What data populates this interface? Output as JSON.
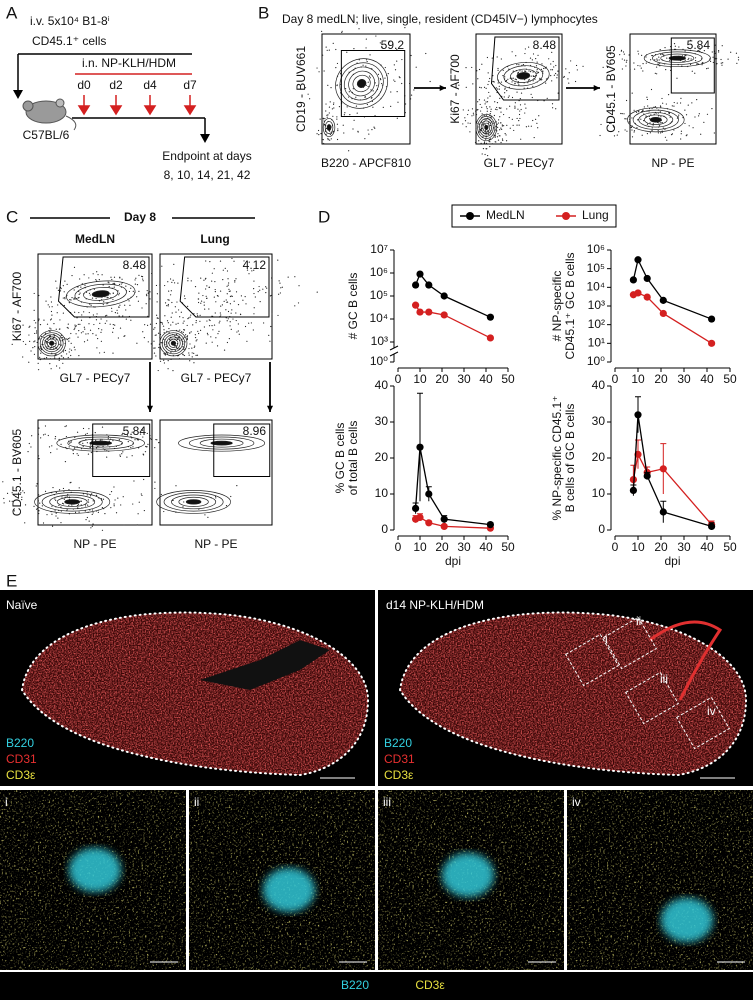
{
  "panel_labels": [
    "A",
    "B",
    "C",
    "D",
    "E"
  ],
  "A": {
    "injection": "i.v. 5x10⁴ B1-8ⁱ",
    "cells": "CD45.1⁺ cells",
    "intranasal": "i.n. NP-KLH/HDM",
    "days": [
      "d0",
      "d2",
      "d4",
      "d7"
    ],
    "mouse": "C57BL/6",
    "endpoint": "Endpoint at days",
    "endpoint_days": "8, 10, 14, 21, 42"
  },
  "B": {
    "title": "Day 8 medLN; live, single, resident (CD45IV−) lymphocytes",
    "plots": [
      {
        "y_label": "CD19 - BUV661",
        "x_label": "B220 - APCF810",
        "gate": "59.2"
      },
      {
        "y_label": "Ki67 - AF700",
        "x_label": "GL7 - PECy7",
        "gate": "8.48"
      },
      {
        "y_label": "CD45.1 - BV605",
        "x_label": "NP - PE",
        "gate": "5.84"
      }
    ]
  },
  "C": {
    "title": "Day 8",
    "columns": [
      "MedLN",
      "Lung"
    ],
    "plots": [
      {
        "y_label": "Ki67 - AF700",
        "x_label": "GL7 - PECy7",
        "gate": "8.48"
      },
      {
        "y_label": "",
        "x_label": "GL7 - PECy7",
        "gate": "4.12"
      },
      {
        "y_label": "CD45.1 - BV605",
        "x_label": "NP - PE",
        "gate": "5.84"
      },
      {
        "y_label": "",
        "x_label": "NP - PE",
        "gate": "8.96"
      }
    ]
  },
  "chart_data": [
    {
      "type": "line",
      "ylabel": [
        "# GC B cells"
      ],
      "x": [
        8,
        10,
        14,
        21,
        42
      ],
      "xlim": [
        0,
        50
      ],
      "xticks": [
        0,
        10,
        20,
        30,
        40,
        50
      ],
      "ylim": [
        1,
        10000000
      ],
      "log_scale": true,
      "axis_break": true,
      "yticks": [
        {
          "value": 1,
          "label": "10⁰"
        },
        {
          "value": 1000,
          "label": "10³"
        },
        {
          "value": 10000,
          "label": "10⁴"
        },
        {
          "value": 100000,
          "label": "10⁵"
        },
        {
          "value": 1000000,
          "label": "10⁶"
        },
        {
          "value": 10000000,
          "label": "10⁷"
        }
      ],
      "series": [
        {
          "name": "MedLN",
          "color": "#000000",
          "values": [
            300000,
            900000,
            300000,
            100000,
            12000
          ]
        },
        {
          "name": "Lung",
          "color": "#d42020",
          "values": [
            40000,
            20000,
            20000,
            15000,
            1500
          ]
        }
      ]
    },
    {
      "type": "line",
      "ylabel": [
        "# NP-specific",
        "CD45.1⁺ GC B cells"
      ],
      "x": [
        8,
        10,
        14,
        21,
        42
      ],
      "xlim": [
        0,
        50
      ],
      "xticks": [
        0,
        10,
        20,
        30,
        40,
        50
      ],
      "ylim": [
        1,
        1000000
      ],
      "log_scale": true,
      "yticks": [
        {
          "value": 1,
          "label": "10⁰"
        },
        {
          "value": 10,
          "label": "10¹"
        },
        {
          "value": 100,
          "label": "10²"
        },
        {
          "value": 1000,
          "label": "10³"
        },
        {
          "value": 10000,
          "label": "10⁴"
        },
        {
          "value": 100000,
          "label": "10⁵"
        },
        {
          "value": 1000000,
          "label": "10⁶"
        }
      ],
      "series": [
        {
          "color": "#000000",
          "values": [
            25000,
            300000,
            30000,
            2000,
            200
          ]
        },
        {
          "color": "#d42020",
          "values": [
            4000,
            5000,
            3000,
            400,
            10
          ]
        }
      ]
    },
    {
      "type": "line",
      "ylabel": [
        "% GC B cells",
        "of total B cells"
      ],
      "xlabel": "dpi",
      "x": [
        8,
        10,
        14,
        21,
        42
      ],
      "xlim": [
        0,
        50
      ],
      "xticks": [
        0,
        10,
        20,
        30,
        40,
        50
      ],
      "ylim": [
        0,
        40
      ],
      "yticks": [
        0,
        10,
        20,
        30,
        40
      ],
      "series": [
        {
          "color": "#000000",
          "values": [
            6,
            23,
            10,
            3,
            1.5
          ],
          "errors": [
            1.5,
            15,
            2,
            1,
            0.5
          ]
        },
        {
          "color": "#d42020",
          "values": [
            3,
            3.5,
            2,
            1,
            0.5
          ],
          "errors": [
            1,
            1,
            0.5,
            0.5,
            0.3
          ]
        }
      ]
    },
    {
      "type": "line",
      "ylabel": [
        "% NP-specific CD45.1⁺",
        "B cells of GC B cells"
      ],
      "xlabel": "dpi",
      "x": [
        8,
        10,
        14,
        21,
        42
      ],
      "xlim": [
        0,
        50
      ],
      "xticks": [
        0,
        10,
        20,
        30,
        40,
        50
      ],
      "ylim": [
        0,
        40
      ],
      "yticks": [
        0,
        10,
        20,
        30,
        40
      ],
      "series": [
        {
          "color": "#000000",
          "values": [
            11,
            32,
            15,
            5,
            1
          ],
          "errors": [
            1.5,
            5,
            1,
            3,
            1
          ]
        },
        {
          "color": "#d42020",
          "values": [
            14,
            21,
            16,
            17,
            1.5
          ],
          "errors": [
            4,
            4,
            1.5,
            7,
            1
          ]
        }
      ]
    }
  ],
  "E": {
    "titles": [
      "Naïve",
      "d14 NP-KLH/HDM"
    ],
    "channels": [
      "B220",
      "CD31",
      "CD3ε"
    ],
    "regions": [
      "i",
      "ii",
      "iii",
      "iv"
    ],
    "bottom_channels": [
      "B220",
      "CD3ε"
    ]
  }
}
